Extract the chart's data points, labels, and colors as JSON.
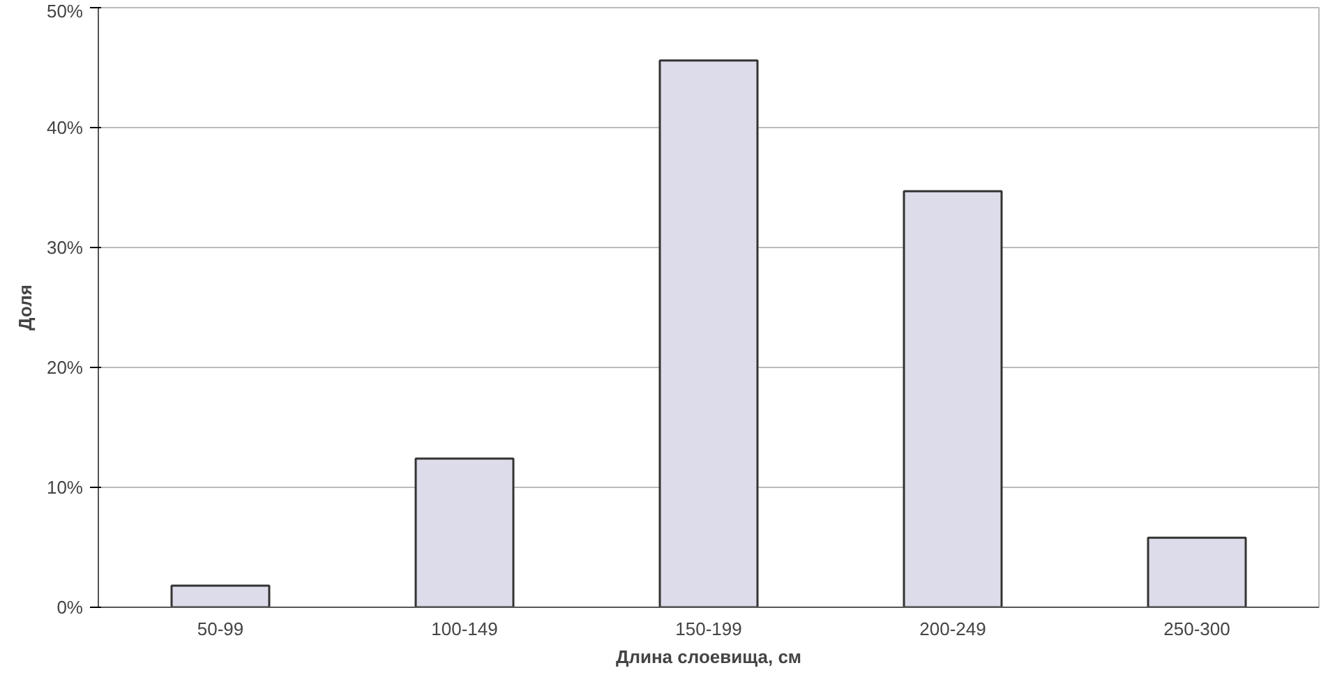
{
  "chart_data": {
    "type": "bar",
    "xlabel": "Длина слоевища, см",
    "ylabel": "Доля",
    "categories": [
      "50-99",
      "100-149",
      "150-199",
      "200-249",
      "250-300"
    ],
    "values": [
      1.8,
      12.4,
      45.6,
      34.7,
      5.8
    ],
    "color": "#dcdcea",
    "ylim": [
      0,
      50
    ],
    "yticks": [
      {
        "value": 0,
        "label": "0%"
      },
      {
        "value": 10,
        "label": "10%"
      },
      {
        "value": 20,
        "label": "20%"
      },
      {
        "value": 30,
        "label": "30%"
      },
      {
        "value": 40,
        "label": "40%"
      },
      {
        "value": 50,
        "label": "50%"
      }
    ],
    "grid": "y"
  }
}
